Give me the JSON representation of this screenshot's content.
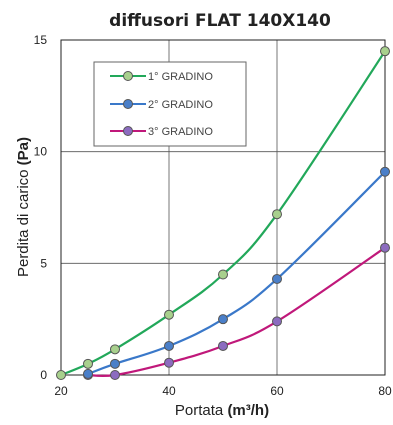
{
  "chart_data": {
    "type": "line",
    "title": "diffusori FLAT 140X140",
    "xlabel": {
      "text": "Portata ",
      "unit": "(m³/h)"
    },
    "ylabel": {
      "text": "Perdita di carico ",
      "unit": "(Pa)"
    },
    "xlim": [
      20,
      80
    ],
    "ylim": [
      0,
      15
    ],
    "x_ticks": [
      "20",
      "40",
      "60",
      "80"
    ],
    "y_ticks": [
      "0",
      "5",
      "10",
      "15"
    ],
    "grid": true,
    "legend_position": "top-left",
    "series": [
      {
        "name": "1° GRADINO",
        "color": "#22a85a",
        "marker_fill": "#a8d08d",
        "x": [
          20,
          25,
          30,
          40,
          50,
          60,
          80
        ],
        "y": [
          0,
          0.5,
          1.15,
          2.7,
          4.5,
          7.2,
          14.5
        ]
      },
      {
        "name": "2° GRADINO",
        "color": "#3a78c9",
        "marker_fill": "#4a7fc9",
        "x": [
          25,
          30,
          40,
          50,
          60,
          80
        ],
        "y": [
          0.05,
          0.5,
          1.3,
          2.5,
          4.3,
          9.1
        ]
      },
      {
        "name": "3° GRADINO",
        "color": "#c0187a",
        "marker_fill": "#8c6cc0",
        "x": [
          25,
          30,
          40,
          50,
          60,
          80
        ],
        "y": [
          0,
          0,
          0.55,
          1.3,
          2.4,
          5.7
        ]
      }
    ]
  }
}
